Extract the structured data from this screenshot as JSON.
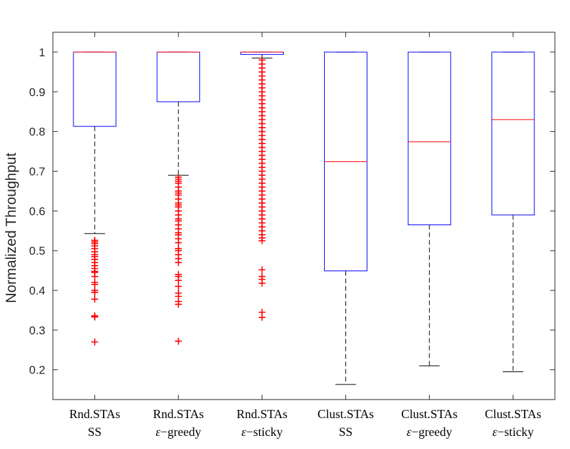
{
  "chart_data": {
    "type": "boxplot",
    "title": "",
    "xlabel": "",
    "ylabel": "Normalized Throughput",
    "ylim": [
      0.125,
      1.05
    ],
    "yticks": [
      0.2,
      0.3,
      0.4,
      0.5,
      0.6,
      0.7,
      0.8,
      0.9,
      1
    ],
    "ytick_labels": [
      "0.2",
      "0.3",
      "0.4",
      "0.5",
      "0.6",
      "0.7",
      "0.8",
      "0.9",
      "1"
    ],
    "grid": false,
    "colors": {
      "box": "#0000ff",
      "median": "#ff0000",
      "whisker": "#000000",
      "outlier": "#ff0000",
      "axis": "#262626"
    },
    "categories": [
      {
        "line1": "Rnd.STAs",
        "line2": "SS",
        "greek": "",
        "q1": 0.813,
        "median": 1.0,
        "q3": 1.0,
        "whisker_low": 0.543,
        "whisker_high": 1.0,
        "outliers": [
          0.27,
          0.333,
          0.336,
          0.378,
          0.395,
          0.4,
          0.415,
          0.42,
          0.435,
          0.445,
          0.448,
          0.455,
          0.462,
          0.47,
          0.478,
          0.485,
          0.49,
          0.497,
          0.505,
          0.512,
          0.518,
          0.522,
          0.526
        ]
      },
      {
        "line1": "Rnd.STAs",
        "line2": "−greedy",
        "greek": "ε",
        "q1": 0.875,
        "median": 1.0,
        "q3": 1.0,
        "whisker_low": 0.69,
        "whisker_high": 1.0,
        "outliers": [
          0.272,
          0.365,
          0.372,
          0.385,
          0.393,
          0.41,
          0.425,
          0.435,
          0.44,
          0.47,
          0.48,
          0.49,
          0.5,
          0.505,
          0.52,
          0.53,
          0.54,
          0.545,
          0.555,
          0.565,
          0.575,
          0.58,
          0.59,
          0.6,
          0.61,
          0.615,
          0.62,
          0.63,
          0.64,
          0.645,
          0.65,
          0.66,
          0.67,
          0.675,
          0.68,
          0.685
        ]
      },
      {
        "line1": "Rnd.STAs",
        "line2": "−sticky",
        "greek": "ε",
        "q1": 0.994,
        "median": 1.0,
        "q3": 1.0,
        "whisker_low": 0.985,
        "whisker_high": 1.0,
        "outliers": [
          0.332,
          0.345,
          0.418,
          0.428,
          0.435,
          0.452,
          0.525,
          0.532,
          0.54,
          0.55,
          0.56,
          0.57,
          0.58,
          0.59,
          0.6,
          0.61,
          0.62,
          0.63,
          0.64,
          0.65,
          0.66,
          0.67,
          0.68,
          0.69,
          0.7,
          0.71,
          0.72,
          0.73,
          0.74,
          0.75,
          0.76,
          0.77,
          0.78,
          0.79,
          0.8,
          0.81,
          0.82,
          0.83,
          0.84,
          0.85,
          0.86,
          0.87,
          0.88,
          0.89,
          0.9,
          0.91,
          0.92,
          0.93,
          0.94,
          0.95,
          0.96,
          0.97,
          0.98
        ]
      },
      {
        "line1": "Clust.STAs",
        "line2": "SS",
        "greek": "",
        "q1": 0.449,
        "median": 0.724,
        "q3": 1.0,
        "whisker_low": 0.163,
        "whisker_high": 1.0,
        "outliers": []
      },
      {
        "line1": "Clust.STAs",
        "line2": "−greedy",
        "greek": "ε",
        "q1": 0.565,
        "median": 0.774,
        "q3": 1.0,
        "whisker_low": 0.21,
        "whisker_high": 1.0,
        "outliers": []
      },
      {
        "line1": "Clust.STAs",
        "line2": "−sticky",
        "greek": "ε",
        "q1": 0.59,
        "median": 0.83,
        "q3": 1.0,
        "whisker_low": 0.195,
        "whisker_high": 1.0,
        "outliers": []
      }
    ]
  }
}
